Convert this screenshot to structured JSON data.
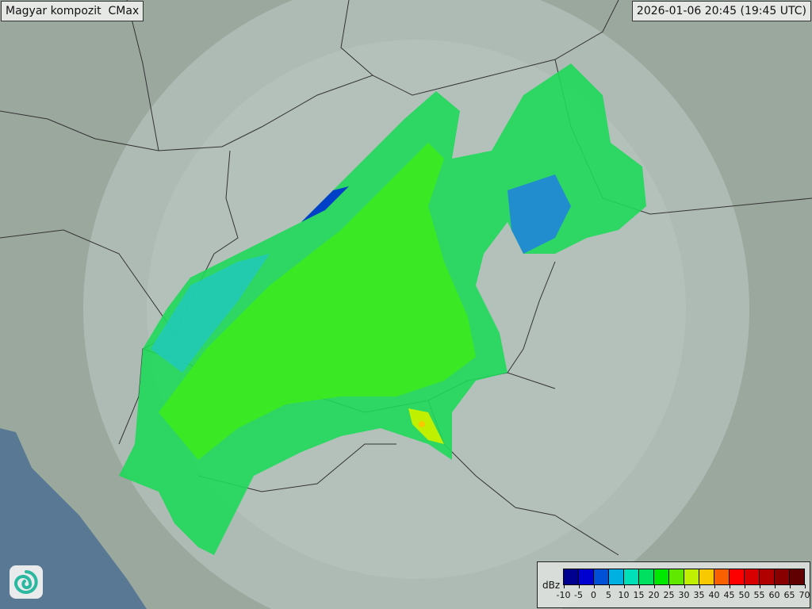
{
  "header": {
    "title": "Magyar kompozit  CMax",
    "timestamp": "2026-01-06 20:45 (19:45 UTC)"
  },
  "legend": {
    "unit": "dBz",
    "labels": [
      "-10",
      "-5",
      "0",
      "5",
      "10",
      "15",
      "20",
      "25",
      "30",
      "35",
      "40",
      "45",
      "50",
      "55",
      "60",
      "65",
      "70"
    ],
    "colors": [
      "#000090",
      "#0000d0",
      "#0050d8",
      "#00b0e0",
      "#00e0b8",
      "#00e060",
      "#00e800",
      "#60e800",
      "#c0f000",
      "#f8c800",
      "#f86000",
      "#ff0000",
      "#d80000",
      "#b00000",
      "#880000",
      "#600000"
    ]
  },
  "map": {
    "land_color": "#9aa89e",
    "sea_color": "#587894",
    "coverage_color": "#c8d2ce",
    "border_color": "#333333"
  },
  "logo": {
    "icon": "swirl-logo-icon"
  }
}
